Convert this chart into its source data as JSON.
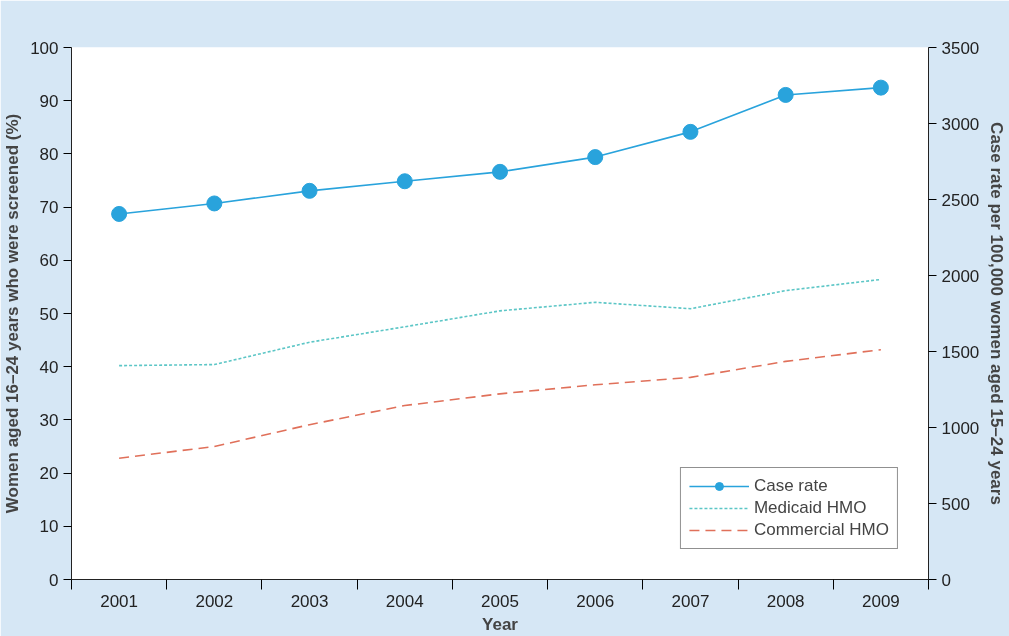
{
  "chart_data": {
    "type": "line",
    "categories": [
      "2001",
      "2002",
      "2003",
      "2004",
      "2005",
      "2006",
      "2007",
      "2008",
      "2009"
    ],
    "xlabel": "Year",
    "ylabel": "Women aged 16–24 years who were screened (%)",
    "y2label": "Case rate per 100,000 women aged 15–24 years",
    "ylim": [
      0,
      100
    ],
    "yticks": [
      0,
      10,
      20,
      30,
      40,
      50,
      60,
      70,
      80,
      90,
      100
    ],
    "y2lim": [
      0,
      3500
    ],
    "y2ticks": [
      0,
      500,
      1000,
      1500,
      2000,
      2500,
      3000,
      3500
    ],
    "grid": false,
    "legend": "bottom right",
    "series": [
      {
        "name": "Case rate",
        "color": "#29a3dc",
        "axis": "y2",
        "marker": "circle",
        "line_style": "solid",
        "values": [
          2405,
          2474,
          2557,
          2620,
          2682,
          2779,
          2945,
          3188,
          3236
        ]
      },
      {
        "name": "Medicaid HMO",
        "color": "#5cc6c6",
        "marker": "none",
        "line_style": "dotted",
        "values": [
          40.2,
          40.4,
          44.6,
          47.5,
          50.5,
          52.1,
          50.9,
          54.3,
          56.4
        ]
      },
      {
        "name": "Commercial HMO",
        "color": "#e0705a",
        "marker": "none",
        "line_style": "dashed",
        "values": [
          22.8,
          25.0,
          29.1,
          32.7,
          34.9,
          36.6,
          38.0,
          41.0,
          43.2
        ]
      }
    ]
  }
}
